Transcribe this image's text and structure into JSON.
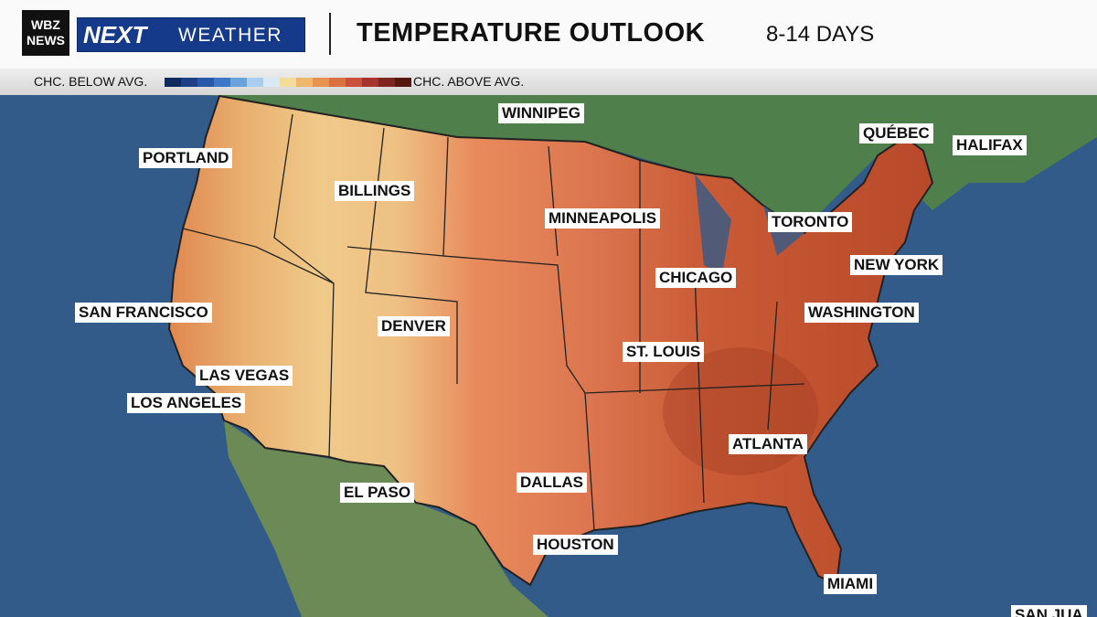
{
  "header": {
    "station": "WBZ NEWS",
    "brand": "NEXT",
    "brand_sub": "WEATHER",
    "title": "TEMPERATURE OUTLOOK",
    "subtitle": "8-14 DAYS"
  },
  "legend": {
    "below": "CHC. BELOW AVG.",
    "above": "CHC. ABOVE AVG.",
    "colors": [
      "#0f2a5c",
      "#1c3f86",
      "#2a58a8",
      "#3d78c6",
      "#6aa3dc",
      "#a8cdee",
      "#d9e8f5",
      "#f5dc9a",
      "#eeb76c",
      "#e69350",
      "#db7040",
      "#c9503a",
      "#a8352d",
      "#7f2620",
      "#561810"
    ]
  },
  "map": {
    "labels": [
      "WINNIPEG",
      "PORTLAND",
      "QUÉBEC",
      "HALIFAX",
      "BILLINGS",
      "MINNEAPOLIS",
      "TORONTO",
      "NEW YORK",
      "CHICAGO",
      "SAN FRANCISCO",
      "WASHINGTON",
      "DENVER",
      "ST. LOUIS",
      "LAS VEGAS",
      "LOS ANGELES",
      "ATLANTA",
      "DALLAS",
      "EL PASO",
      "HOUSTON",
      "MIAMI",
      "SAN JUA"
    ]
  }
}
